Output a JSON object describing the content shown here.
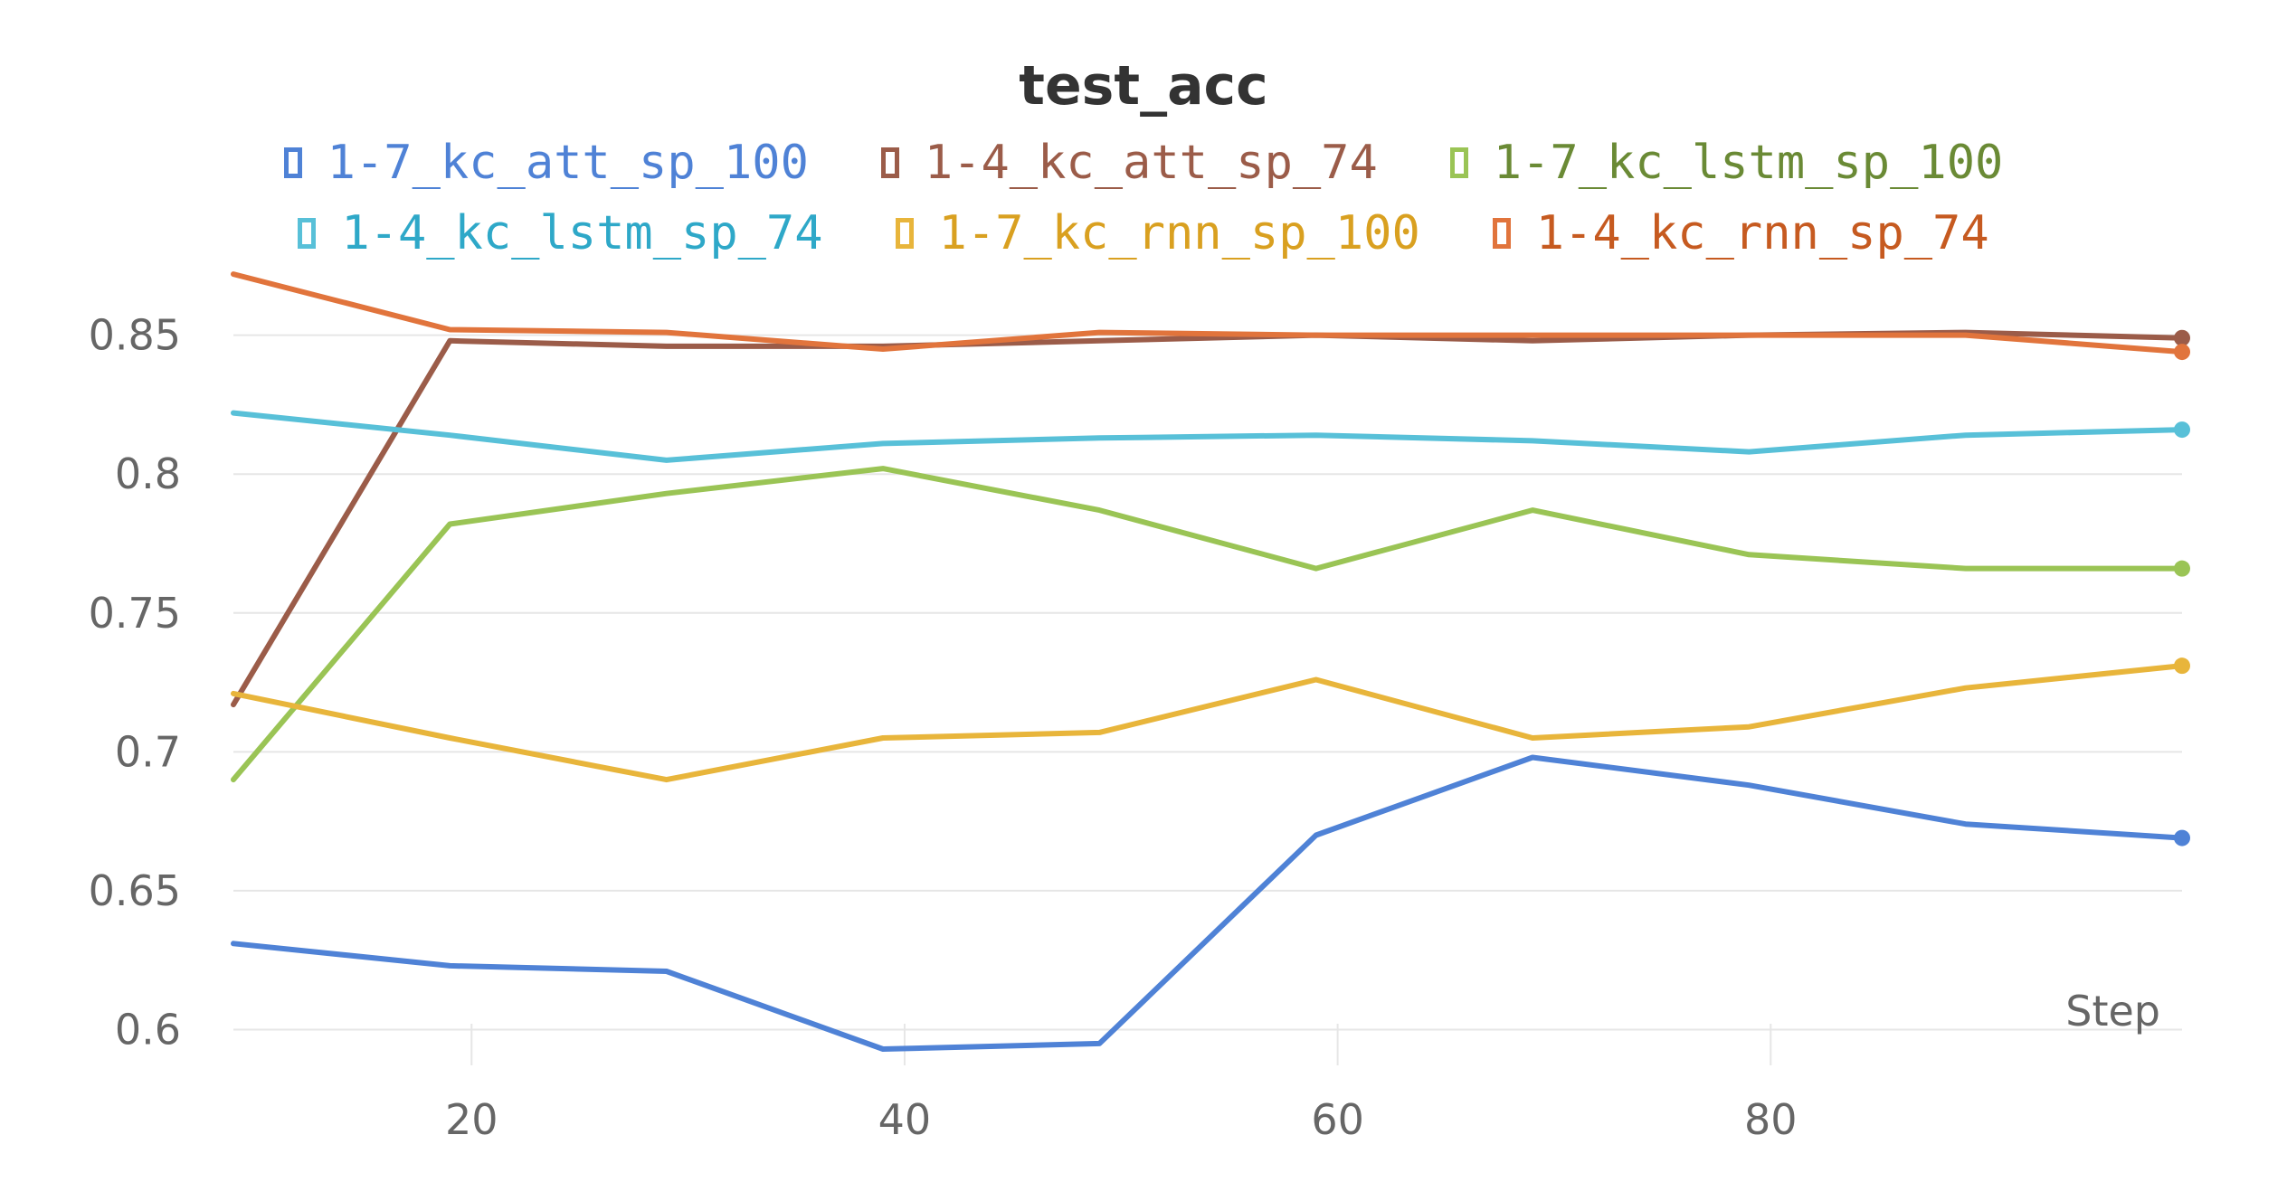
{
  "chart_data": {
    "type": "line",
    "title": "test_acc",
    "xlabel": "Step",
    "ylabel": "",
    "xlim": [
      9,
      99
    ],
    "ylim": [
      0.593,
      0.873
    ],
    "x_ticks": [
      20,
      40,
      60,
      80
    ],
    "y_ticks": [
      0.6,
      0.65,
      0.7,
      0.75,
      0.8,
      0.85
    ],
    "y_tick_labels": [
      "0.6",
      "0.65",
      "0.7",
      "0.75",
      "0.8",
      "0.85"
    ],
    "x_tick_labels": [
      "20",
      "40",
      "60",
      "80"
    ],
    "grid": "horizontal",
    "legend_position": "top",
    "x": [
      9,
      19,
      29,
      39,
      49,
      59,
      69,
      79,
      89,
      99
    ],
    "series": [
      {
        "name": "1-7_kc_att_sp_100",
        "color": "#4f82d6",
        "values": [
          0.631,
          0.623,
          0.621,
          0.593,
          0.595,
          0.67,
          0.698,
          0.688,
          0.674,
          0.669
        ]
      },
      {
        "name": "1-4_kc_att_sp_74",
        "color": "#9b5c49",
        "values": [
          0.717,
          0.848,
          0.846,
          0.846,
          0.848,
          0.85,
          0.848,
          0.85,
          0.851,
          0.849
        ]
      },
      {
        "name": "1-7_kc_lstm_sp_100",
        "color": "#9ac455",
        "values": [
          0.69,
          0.782,
          0.793,
          0.802,
          0.787,
          0.766,
          0.787,
          0.771,
          0.766,
          0.766
        ]
      },
      {
        "name": "1-4_kc_lstm_sp_74",
        "color": "#58c0d8",
        "values": [
          0.822,
          0.814,
          0.805,
          0.811,
          0.813,
          0.814,
          0.812,
          0.808,
          0.814,
          0.816
        ]
      },
      {
        "name": "1-7_kc_rnn_sp_100",
        "color": "#e8b53b",
        "values": [
          0.721,
          0.705,
          0.69,
          0.705,
          0.707,
          0.726,
          0.705,
          0.709,
          0.723,
          0.731
        ]
      },
      {
        "name": "1-4_kc_rnn_sp_74",
        "color": "#e1743c",
        "values": [
          0.872,
          0.852,
          0.851,
          0.845,
          0.851,
          0.85,
          0.85,
          0.85,
          0.85,
          0.844
        ]
      }
    ],
    "legend_text_colors": [
      "#4f82d6",
      "#9b5c49",
      "#6a8a35",
      "#2ea8c8",
      "#d9a020",
      "#c65a20"
    ]
  }
}
